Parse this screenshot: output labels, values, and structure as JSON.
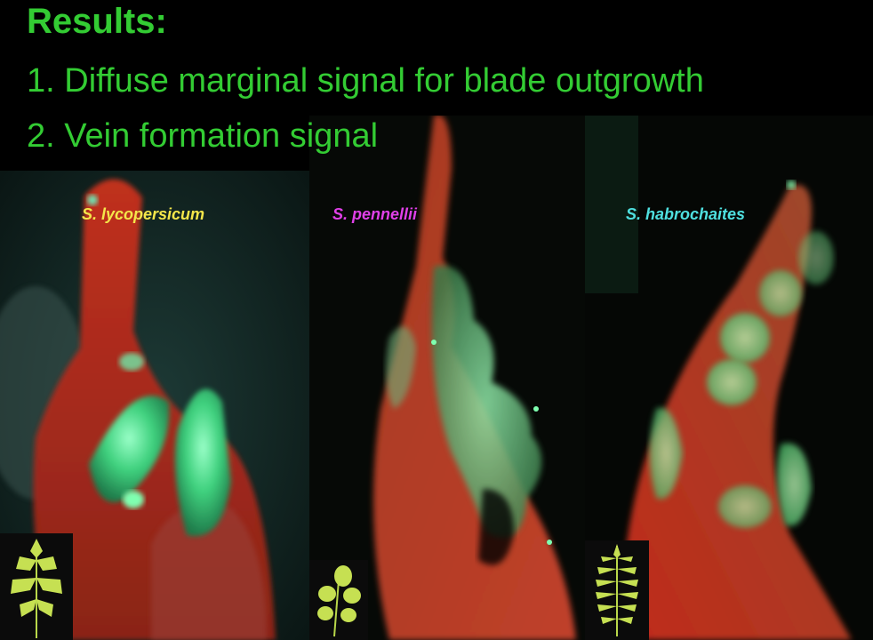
{
  "slide": {
    "title": "Results:",
    "points": [
      {
        "number": "1.",
        "text": "Diffuse marginal signal for blade outgrowth"
      },
      {
        "number": "2.",
        "text": "Vein formation signal"
      }
    ],
    "species": [
      {
        "name": "S. lycopersicum",
        "color": "#f4e64a"
      },
      {
        "name": "S. pennellii",
        "color": "#e040e8"
      },
      {
        "name": "S. habrochaites",
        "color": "#4fe0e0"
      }
    ],
    "colors": {
      "heading": "#33cc33",
      "background": "#000000",
      "tissue_red": "#b52a1c",
      "signal_green": "#48e08a"
    }
  }
}
